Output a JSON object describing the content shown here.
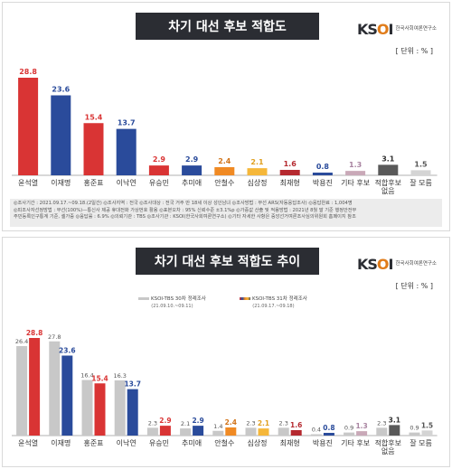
{
  "panel1": {
    "title": "차기 대선 후보 적합도",
    "unit": "[ 단위 : % ]",
    "notes": [
      "◎조사기간 : 2021.09.17.~09.18.(2일간)   ◎조사지역 : 전국   ◎조사대상 : 전국 거주 만 18세 이상 성인남녀   ◎조사방법 : 무선 ARS(자동응답조사)   ◎응답완료 : 1,004명",
      "◎피조사자선정방법 : 무선(100%)—통신사 제공 휴대전화 가상번호 활용   ◎표본오차 : 95% 신뢰수준 ±3.1%p   ◎가중값 산출 및 적용방법 : 2021년 8월 말 기준 행정안전부",
      "주민등록인구통계 기준, 셀가중   ◎응답률 : 6.9%   ◎의뢰기관 : TBS   ◎조사기관 : KSOI(한국사회여론연구소)   ◎기타 자세한 사항은 중앙선거여론조사심의위원회 홈페이지 참조"
    ]
  },
  "panel2": {
    "title": "차기 대선 후보 적합도 추이",
    "unit": "[ 단위 : % ]",
    "legend": [
      {
        "label": "KSOI-TBS 30차 정례조사",
        "sub": "(21.09.10.~09.11)"
      },
      {
        "label": "KSOI-TBS 31차 정례조사",
        "sub": "(21.09.17.~09.18)"
      }
    ]
  },
  "logo": {
    "mark_a": "KS",
    "mark_b": "O",
    "mark_c": "I",
    "sub": "한국사회여론연구소"
  },
  "colors": {
    "red": "#d93434",
    "blue": "#2a4b9b",
    "orange": "#f08a24",
    "yellow": "#f5b73a",
    "lightyellow": "#f4c76b",
    "darkred": "#b5292f",
    "pinkgray": "#c9a9b8",
    "darkgray": "#595959",
    "gray": "#c8c8c8",
    "lightgray": "#d4d4d4"
  },
  "chart_data": [
    {
      "type": "bar",
      "categories": [
        "윤석열",
        "이재명",
        "홍준표",
        "이낙연",
        "유승민",
        "추미애",
        "안철수",
        "심상정",
        "최재형",
        "박용진",
        "기타 후보",
        "적합후보\n없음",
        "잘 모름"
      ],
      "values": [
        28.8,
        23.6,
        15.4,
        13.7,
        2.9,
        2.9,
        2.4,
        2.1,
        1.6,
        0.8,
        1.3,
        3.1,
        1.5
      ],
      "bar_colors": [
        "#d93434",
        "#2a4b9b",
        "#d93434",
        "#2a4b9b",
        "#d93434",
        "#2a4b9b",
        "#f08a24",
        "#f5b73a",
        "#b5292f",
        "#2a4b9b",
        "#c9a9b8",
        "#595959",
        "#d4d4d4"
      ],
      "label_colors": [
        "#d93434",
        "#2a4b9b",
        "#d93434",
        "#2a4b9b",
        "#d93434",
        "#2a4b9b",
        "#d1741a",
        "#e0a020",
        "#b5292f",
        "#2a4b9b",
        "#a883a0",
        "#333333",
        "#555555"
      ],
      "ylim": [
        0,
        32
      ]
    },
    {
      "type": "bar",
      "categories": [
        "윤석열",
        "이재명",
        "홍준표",
        "이낙연",
        "유승민",
        "추미애",
        "안철수",
        "심상정",
        "최재형",
        "박용진",
        "기타 후보",
        "적합후보\n없음",
        "잘 모름"
      ],
      "series": [
        {
          "name": "KSOI-TBS 30차 정례조사",
          "values": [
            26.4,
            27.8,
            16.4,
            16.3,
            2.3,
            2.1,
            1.4,
            2.3,
            2.3,
            0.4,
            0.9,
            2.3,
            0.9
          ]
        },
        {
          "name": "KSOI-TBS 31차 정례조사",
          "values": [
            28.8,
            23.6,
            15.4,
            13.7,
            2.9,
            2.9,
            2.4,
            2.1,
            1.6,
            0.8,
            1.3,
            3.1,
            1.5
          ]
        }
      ],
      "series2_colors": [
        "#d93434",
        "#2a4b9b",
        "#d93434",
        "#2a4b9b",
        "#d93434",
        "#2a4b9b",
        "#f08a24",
        "#f5b73a",
        "#b5292f",
        "#2a4b9b",
        "#c9a9b8",
        "#595959",
        "#d4d4d4"
      ],
      "series2_label_colors": [
        "#d93434",
        "#2a4b9b",
        "#d93434",
        "#2a4b9b",
        "#d93434",
        "#2a4b9b",
        "#d1741a",
        "#e0a020",
        "#b5292f",
        "#2a4b9b",
        "#a883a0",
        "#333333",
        "#555555"
      ],
      "ylim": [
        0,
        32
      ]
    }
  ]
}
